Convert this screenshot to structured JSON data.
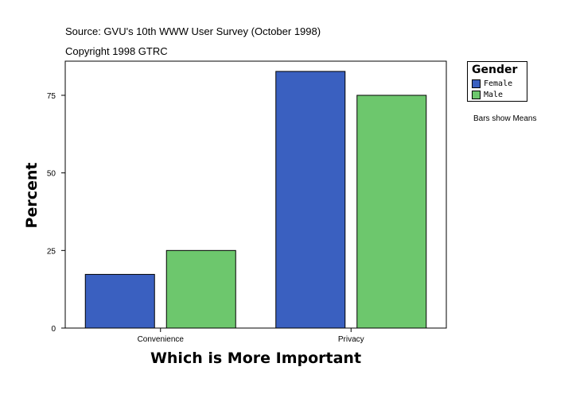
{
  "header": {
    "source": "Source: GVU's 10th WWW User Survey (October 1998)",
    "copyright": "Copyright 1998 GTRC"
  },
  "legend": {
    "title": "Gender",
    "items": [
      {
        "label": "Female",
        "color": "#3a60c0"
      },
      {
        "label": "Male",
        "color": "#6dc76d"
      }
    ]
  },
  "note": "Bars show Means",
  "chart_data": {
    "type": "bar",
    "title": "",
    "xlabel": "Which is More Important",
    "ylabel": "Percent",
    "categories": [
      "Convenience",
      "Privacy"
    ],
    "series": [
      {
        "name": "Female",
        "values": [
          17.3,
          82.7
        ],
        "color": "#3a60c0"
      },
      {
        "name": "Male",
        "values": [
          25.0,
          75.0
        ],
        "color": "#6dc76d"
      }
    ],
    "ylim": [
      0,
      86
    ],
    "yticks": [
      0,
      25,
      50,
      75
    ],
    "grid": false,
    "legend_position": "right"
  }
}
